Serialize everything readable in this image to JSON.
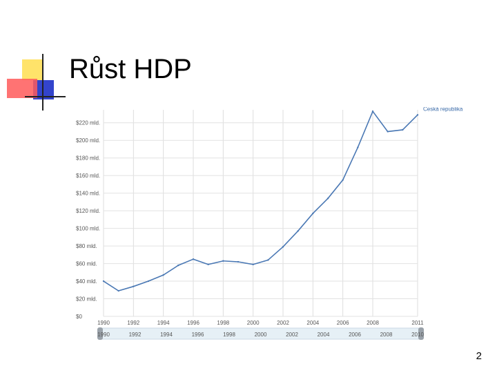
{
  "slide": {
    "title": "Růst HDP",
    "page_number": "2"
  },
  "chart_data": {
    "type": "line",
    "title": "",
    "xlabel": "",
    "ylabel": "",
    "x": [
      1990,
      1991,
      1992,
      1993,
      1994,
      1995,
      1996,
      1997,
      1998,
      1999,
      2000,
      2001,
      2002,
      2003,
      2004,
      2005,
      2006,
      2007,
      2008,
      2009,
      2010,
      2011
    ],
    "series": [
      {
        "name": "Česká republika",
        "color": "#4a78b4",
        "values": [
          40,
          29,
          34,
          40,
          47,
          58,
          65,
          59,
          63,
          62,
          59,
          64,
          79,
          97,
          117,
          134,
          155,
          192,
          233,
          210,
          212,
          229
        ]
      }
    ],
    "ylim": [
      0,
      230
    ],
    "yticks": [
      0,
      20,
      40,
      60,
      80,
      100,
      120,
      140,
      160,
      180,
      200,
      220
    ],
    "ytick_labels": [
      "$0",
      "$20 mld.",
      "$40 mld.",
      "$60 mld.",
      "$80 mld.",
      "$100 mld.",
      "$120 mld.",
      "$140 mld.",
      "$160 mld.",
      "$180 mld.",
      "$200 mld.",
      "$220 mld."
    ],
    "xticks": [
      1990,
      1992,
      1994,
      1996,
      1998,
      2000,
      2002,
      2004,
      2006,
      2008,
      2011
    ],
    "xtick_labels": [
      "1990",
      "1992",
      "1994",
      "1996",
      "1998",
      "2000",
      "2002",
      "2004",
      "2006",
      "2008",
      "2011"
    ],
    "slider_labels": [
      "1990",
      "1992",
      "1994",
      "1996",
      "1998",
      "2000",
      "2002",
      "2004",
      "2006",
      "2008",
      "2010"
    ],
    "grid": true,
    "legend": "right"
  }
}
